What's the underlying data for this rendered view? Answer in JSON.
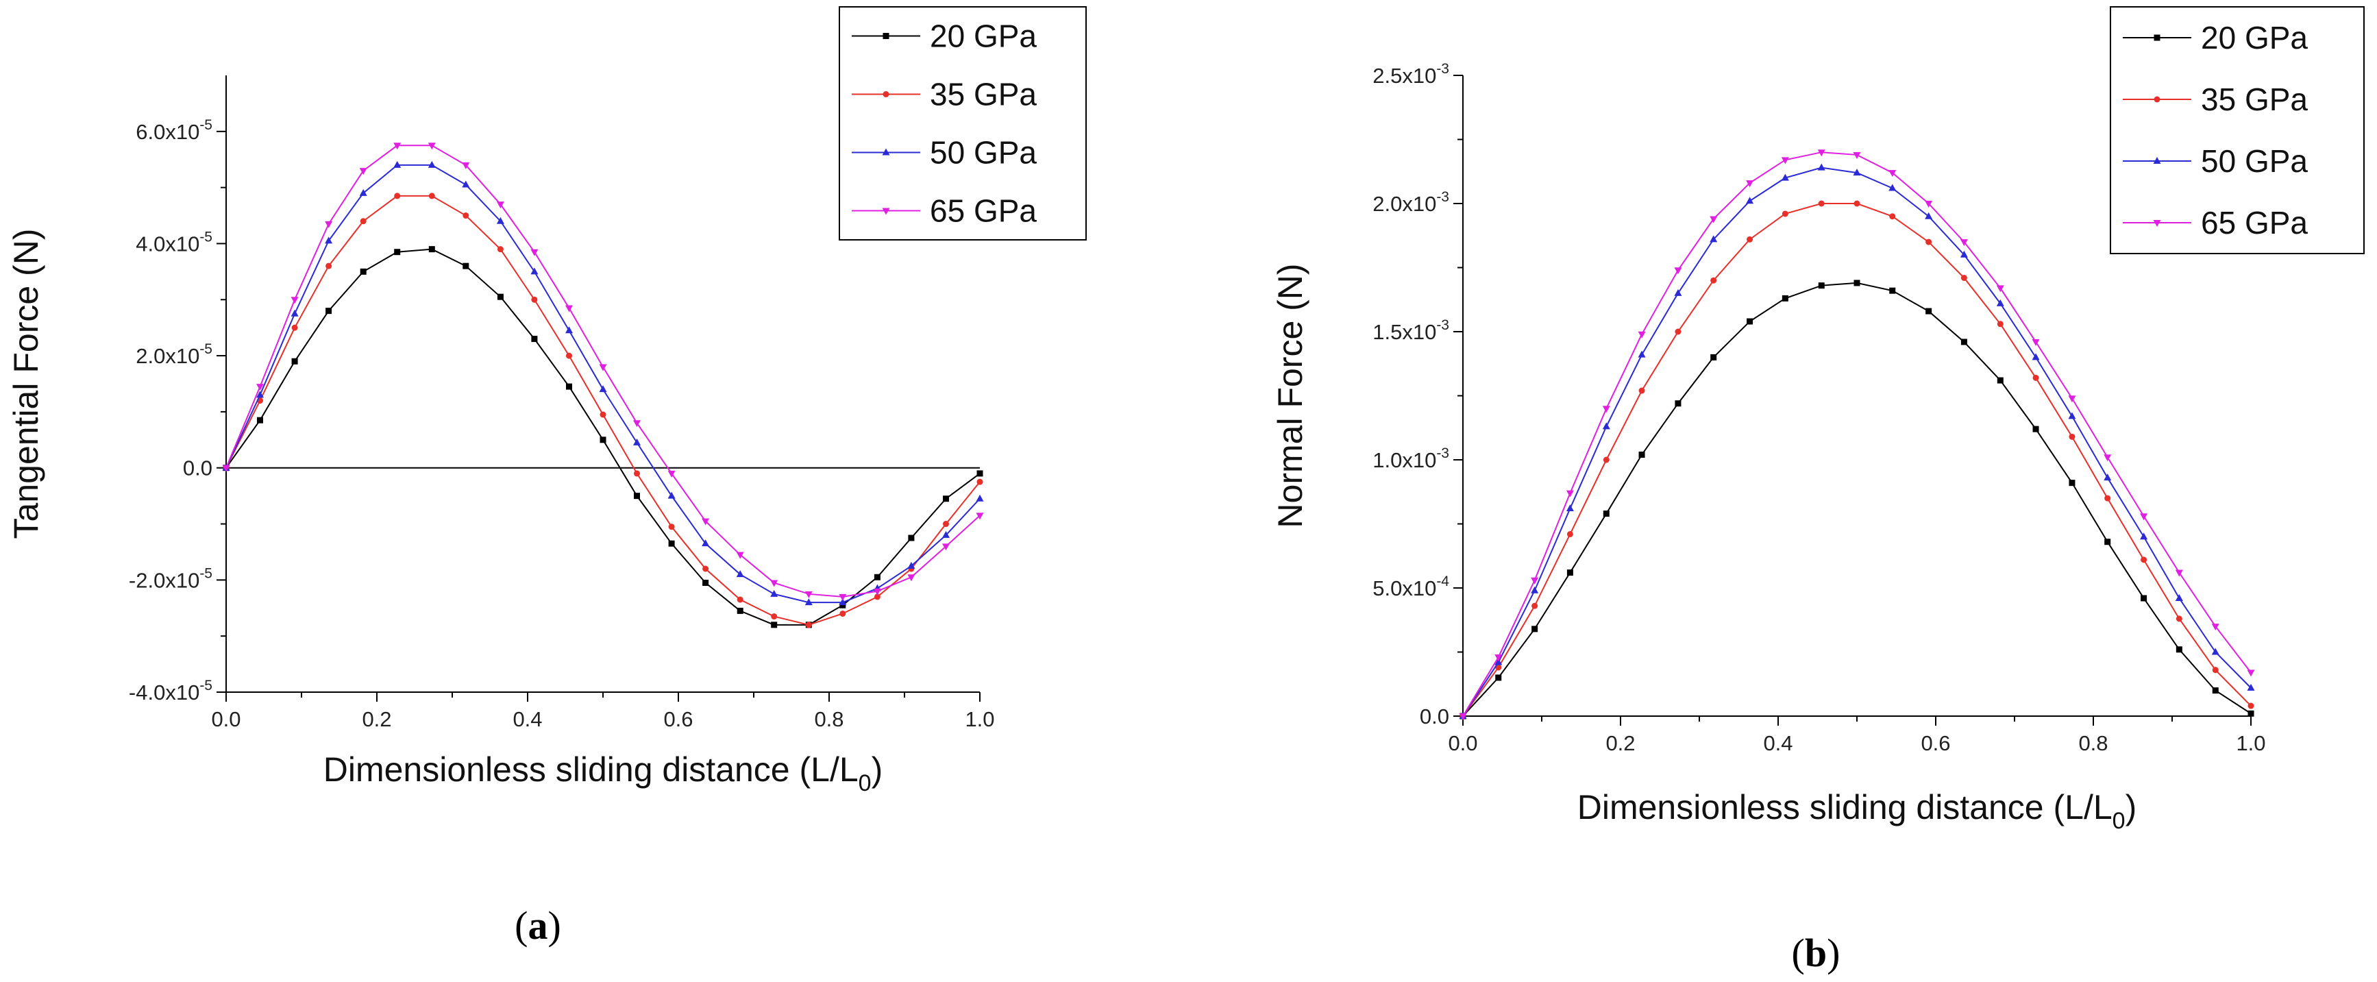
{
  "chart_data": [
    {
      "type": "line",
      "panel": "a",
      "panel_label": [
        "(",
        "a",
        ")"
      ],
      "xlabel": "Dimensionless sliding distance (L/L0)",
      "xlabel_parts": [
        "Dimensionless sliding distance (L/L",
        "0",
        ")"
      ],
      "ylabel": "Tangential Force (N)",
      "xlim": [
        0.0,
        1.0
      ],
      "ylim": [
        -4e-05,
        7e-05
      ],
      "xticks": [
        0.0,
        0.2,
        0.4,
        0.6,
        0.8,
        1.0
      ],
      "xtick_labels": [
        "0.0",
        "0.2",
        "0.4",
        "0.6",
        "0.8",
        "1.0"
      ],
      "yticks": [
        -4e-05,
        -2e-05,
        0.0,
        2e-05,
        4e-05,
        6e-05
      ],
      "ytick_labels": [
        {
          "mant": "-4.0x10",
          "exp": "-5"
        },
        {
          "mant": "-2.0x10",
          "exp": "-5"
        },
        {
          "mant": "0.0",
          "exp": ""
        },
        {
          "mant": "2.0x10",
          "exp": "-5"
        },
        {
          "mant": "4.0x10",
          "exp": "-5"
        },
        {
          "mant": "6.0x10",
          "exp": "-5"
        }
      ],
      "zero_line": true,
      "legend_position": "top-right",
      "x": [
        0.0,
        0.045,
        0.091,
        0.136,
        0.182,
        0.227,
        0.273,
        0.318,
        0.364,
        0.409,
        0.455,
        0.5,
        0.545,
        0.591,
        0.636,
        0.682,
        0.727,
        0.773,
        0.818,
        0.864,
        0.909,
        0.955,
        1.0
      ],
      "series": [
        {
          "name": "20 GPa",
          "color": "#000000",
          "marker": "square",
          "values": [
            0.0,
            8.5e-06,
            1.9e-05,
            2.8e-05,
            3.5e-05,
            3.85e-05,
            3.9e-05,
            3.6e-05,
            3.05e-05,
            2.3e-05,
            1.45e-05,
            5e-06,
            -5e-06,
            -1.35e-05,
            -2.05e-05,
            -2.55e-05,
            -2.8e-05,
            -2.8e-05,
            -2.45e-05,
            -1.95e-05,
            -1.25e-05,
            -5.5e-06,
            -1e-06
          ]
        },
        {
          "name": "35 GPa",
          "color": "#e8302a",
          "marker": "circle",
          "values": [
            0.0,
            1.2e-05,
            2.5e-05,
            3.6e-05,
            4.4e-05,
            4.85e-05,
            4.85e-05,
            4.5e-05,
            3.9e-05,
            3e-05,
            2e-05,
            9.5e-06,
            -1e-06,
            -1.05e-05,
            -1.8e-05,
            -2.35e-05,
            -2.65e-05,
            -2.8e-05,
            -2.6e-05,
            -2.3e-05,
            -1.8e-05,
            -1e-05,
            -2.5e-06
          ]
        },
        {
          "name": "50 GPa",
          "color": "#2b2bd6",
          "marker": "triangle-up",
          "values": [
            0.0,
            1.3e-05,
            2.75e-05,
            4.05e-05,
            4.9e-05,
            5.4e-05,
            5.4e-05,
            5.05e-05,
            4.4e-05,
            3.5e-05,
            2.45e-05,
            1.4e-05,
            4.5e-06,
            -5e-06,
            -1.35e-05,
            -1.9e-05,
            -2.25e-05,
            -2.4e-05,
            -2.4e-05,
            -2.15e-05,
            -1.75e-05,
            -1.2e-05,
            -5.5e-06
          ]
        },
        {
          "name": "65 GPa",
          "color": "#e020e0",
          "marker": "triangle-down",
          "values": [
            0.0,
            1.45e-05,
            3e-05,
            4.35e-05,
            5.3e-05,
            5.75e-05,
            5.75e-05,
            5.4e-05,
            4.7e-05,
            3.85e-05,
            2.85e-05,
            1.8e-05,
            8e-06,
            -1e-06,
            -9.5e-06,
            -1.55e-05,
            -2.05e-05,
            -2.25e-05,
            -2.3e-05,
            -2.2e-05,
            -1.95e-05,
            -1.4e-05,
            -8.5e-06
          ]
        }
      ]
    },
    {
      "type": "line",
      "panel": "b",
      "panel_label": [
        "(",
        "b",
        ")"
      ],
      "xlabel": "Dimensionless sliding distance (L/L0)",
      "xlabel_parts": [
        "Dimensionless sliding distance (L/L",
        "0",
        ")"
      ],
      "ylabel": "Normal Force (N)",
      "xlim": [
        0.0,
        1.0
      ],
      "ylim": [
        0.0,
        0.0025
      ],
      "xticks": [
        0.0,
        0.2,
        0.4,
        0.6,
        0.8,
        1.0
      ],
      "xtick_labels": [
        "0.0",
        "0.2",
        "0.4",
        "0.6",
        "0.8",
        "1.0"
      ],
      "yticks": [
        0.0,
        0.0005,
        0.001,
        0.0015,
        0.002,
        0.0025
      ],
      "ytick_labels": [
        {
          "mant": "0.0",
          "exp": ""
        },
        {
          "mant": "5.0x10",
          "exp": "-4"
        },
        {
          "mant": "1.0x10",
          "exp": "-3"
        },
        {
          "mant": "1.5x10",
          "exp": "-3"
        },
        {
          "mant": "2.0x10",
          "exp": "-3"
        },
        {
          "mant": "2.5x10",
          "exp": "-3"
        }
      ],
      "zero_line": false,
      "legend_position": "top-right",
      "x": [
        0.0,
        0.045,
        0.091,
        0.136,
        0.182,
        0.227,
        0.273,
        0.318,
        0.364,
        0.409,
        0.455,
        0.5,
        0.545,
        0.591,
        0.636,
        0.682,
        0.727,
        0.773,
        0.818,
        0.864,
        0.909,
        0.955,
        1.0
      ],
      "series": [
        {
          "name": "20 GPa",
          "color": "#000000",
          "marker": "square",
          "values": [
            0.0,
            0.00015,
            0.00034,
            0.00056,
            0.00079,
            0.00102,
            0.00122,
            0.0014,
            0.00154,
            0.00163,
            0.00168,
            0.00169,
            0.00166,
            0.00158,
            0.00146,
            0.00131,
            0.00112,
            0.00091,
            0.00068,
            0.00046,
            0.00026,
            0.0001,
            1e-05
          ]
        },
        {
          "name": "35 GPa",
          "color": "#e8302a",
          "marker": "circle",
          "values": [
            0.0,
            0.00019,
            0.00043,
            0.00071,
            0.001,
            0.00127,
            0.0015,
            0.0017,
            0.00186,
            0.00196,
            0.002,
            0.002,
            0.00195,
            0.00185,
            0.00171,
            0.00153,
            0.00132,
            0.00109,
            0.00085,
            0.00061,
            0.00038,
            0.00018,
            4e-05
          ]
        },
        {
          "name": "50 GPa",
          "color": "#2b2bd6",
          "marker": "triangle-up",
          "values": [
            0.0,
            0.00021,
            0.00049,
            0.00081,
            0.00113,
            0.00141,
            0.00165,
            0.00186,
            0.00201,
            0.0021,
            0.00214,
            0.00212,
            0.00206,
            0.00195,
            0.0018,
            0.00161,
            0.0014,
            0.00117,
            0.00093,
            0.0007,
            0.00046,
            0.00025,
            0.00011
          ]
        },
        {
          "name": "65 GPa",
          "color": "#e020e0",
          "marker": "triangle-down",
          "values": [
            0.0,
            0.00023,
            0.00053,
            0.00087,
            0.0012,
            0.00149,
            0.00174,
            0.00194,
            0.00208,
            0.00217,
            0.0022,
            0.00219,
            0.00212,
            0.002,
            0.00185,
            0.00167,
            0.00146,
            0.00124,
            0.00101,
            0.00078,
            0.00056,
            0.00035,
            0.00017
          ]
        }
      ]
    }
  ]
}
